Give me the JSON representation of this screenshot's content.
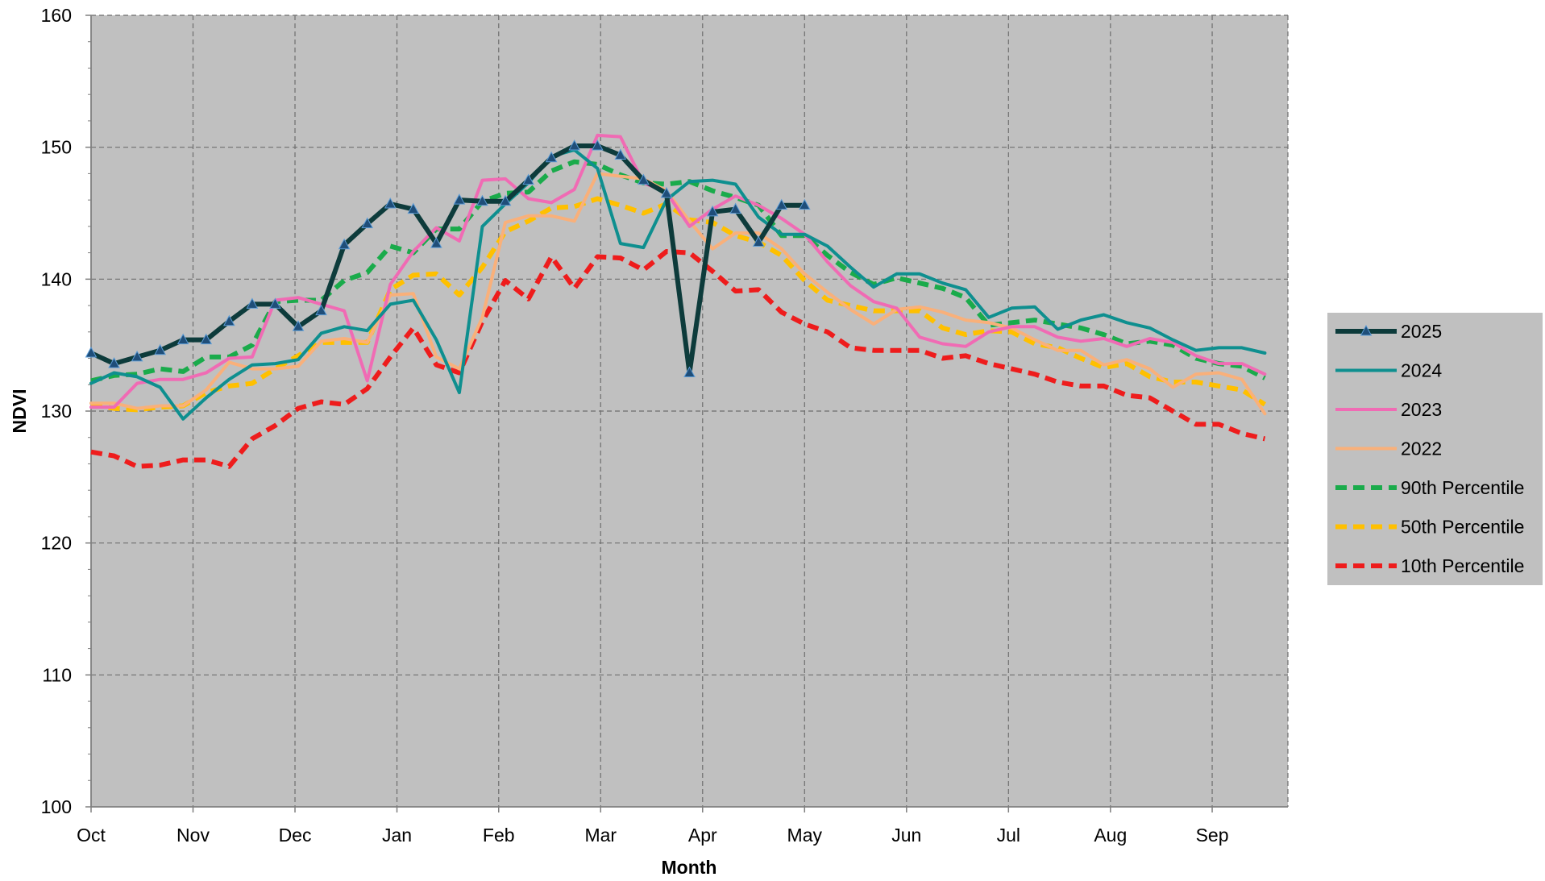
{
  "chart_data": {
    "type": "line",
    "title": "",
    "xlabel": "Month",
    "ylabel": "NDVI",
    "ylim": [
      100,
      160
    ],
    "yticks": [
      100,
      110,
      120,
      130,
      140,
      150,
      160
    ],
    "x_range": [
      0,
      52
    ],
    "month_ticks": [
      {
        "label": "Oct",
        "week": 0
      },
      {
        "label": "Nov",
        "week": 4.43
      },
      {
        "label": "Dec",
        "week": 8.86
      },
      {
        "label": "Jan",
        "week": 13.29
      },
      {
        "label": "Feb",
        "week": 17.71
      },
      {
        "label": "Mar",
        "week": 22.14
      },
      {
        "label": "Apr",
        "week": 26.57
      },
      {
        "label": "May",
        "week": 31.0
      },
      {
        "label": "Jun",
        "week": 35.43
      },
      {
        "label": "Jul",
        "week": 39.86
      },
      {
        "label": "Aug",
        "week": 44.29
      },
      {
        "label": "Sep",
        "week": 48.71
      }
    ],
    "grid": true,
    "legend_position": "right",
    "plot_background": "#c0c0c0",
    "series": [
      {
        "name": "2025",
        "color": "#0d3b3b",
        "dash": false,
        "marker": "triangle",
        "width": 6,
        "values": [
          134.4,
          133.6,
          134.1,
          134.6,
          135.4,
          135.4,
          136.8,
          138.1,
          138.1,
          136.4,
          137.6,
          142.6,
          144.2,
          145.7,
          145.3,
          142.7,
          146.0,
          145.9,
          145.9,
          147.5,
          149.2,
          150.1,
          150.1,
          149.4,
          147.5,
          146.5,
          132.9,
          145.1,
          145.3,
          142.8,
          145.6,
          145.6
        ]
      },
      {
        "name": "2024",
        "color": "#0e8f8f",
        "dash": false,
        "marker": "none",
        "width": 4,
        "values": [
          132.1,
          132.9,
          132.6,
          131.8,
          129.4,
          131.0,
          132.4,
          133.5,
          133.6,
          133.9,
          135.9,
          136.4,
          136.1,
          138.1,
          138.4,
          135.4,
          131.4,
          144.0,
          145.7,
          147.3,
          149.3,
          149.8,
          148.4,
          142.7,
          142.4,
          146.0,
          147.4,
          147.5,
          147.2,
          144.7,
          143.4,
          143.4,
          142.5,
          140.9,
          139.4,
          140.4,
          140.4,
          139.7,
          139.2,
          137.1,
          137.8,
          137.9,
          136.2,
          136.9,
          137.3,
          136.7,
          136.3,
          135.4,
          134.6,
          134.8,
          134.8,
          134.4
        ]
      },
      {
        "name": "2023",
        "color": "#f06bb4",
        "dash": false,
        "marker": "none",
        "width": 4,
        "values": [
          130.3,
          130.3,
          132.1,
          132.4,
          132.4,
          132.9,
          134.0,
          134.1,
          138.4,
          138.6,
          138.1,
          137.6,
          132.3,
          139.6,
          142.1,
          143.9,
          142.9,
          147.5,
          147.6,
          146.1,
          145.8,
          146.8,
          150.9,
          150.8,
          147.3,
          146.6,
          144.0,
          145.3,
          146.3,
          145.6,
          144.6,
          143.4,
          141.3,
          139.5,
          138.3,
          137.8,
          135.6,
          135.1,
          134.9,
          136.0,
          136.4,
          136.4,
          135.6,
          135.3,
          135.5,
          134.9,
          135.5,
          135.2,
          134.2,
          133.6,
          133.6,
          132.8
        ]
      },
      {
        "name": "2022",
        "color": "#f9b07a",
        "dash": false,
        "marker": "none",
        "width": 4,
        "values": [
          130.6,
          130.6,
          130.2,
          130.4,
          130.4,
          131.6,
          133.7,
          133.2,
          133.2,
          133.4,
          135.3,
          135.5,
          135.2,
          138.8,
          138.9,
          134.1,
          133.2,
          137.1,
          144.3,
          144.8,
          144.8,
          144.4,
          148.0,
          147.8,
          147.6,
          146.7,
          144.4,
          142.3,
          143.5,
          143.5,
          142.3,
          140.4,
          139.0,
          137.7,
          136.6,
          137.7,
          137.9,
          137.5,
          136.9,
          136.7,
          136.3,
          135.4,
          134.6,
          134.6,
          133.5,
          133.9,
          133.2,
          131.8,
          132.8,
          132.9,
          132.4,
          129.8
        ]
      },
      {
        "name": "90th Percentile",
        "color": "#1aab4b",
        "dash": true,
        "marker": "none",
        "width": 6,
        "values": [
          132.3,
          132.7,
          132.8,
          133.2,
          133.0,
          134.1,
          134.1,
          135.0,
          138.3,
          138.4,
          138.4,
          139.9,
          140.5,
          142.5,
          142.0,
          143.8,
          143.8,
          145.9,
          146.5,
          146.6,
          148.2,
          148.9,
          148.7,
          147.9,
          147.3,
          147.2,
          147.4,
          146.7,
          146.2,
          145.6,
          143.3,
          143.3,
          141.8,
          140.5,
          139.6,
          140.1,
          139.7,
          139.3,
          138.6,
          136.5,
          136.7,
          136.9,
          136.6,
          136.3,
          135.8,
          135.1,
          135.3,
          135.0,
          134.0,
          133.6,
          133.4,
          132.5
        ]
      },
      {
        "name": "50th Percentile",
        "color": "#ffc000",
        "dash": true,
        "marker": "none",
        "width": 6,
        "values": [
          130.5,
          130.2,
          130.1,
          130.3,
          130.4,
          131.4,
          131.9,
          132.1,
          133.2,
          134.2,
          135.2,
          135.2,
          135.2,
          139.2,
          140.3,
          140.4,
          138.8,
          140.9,
          143.6,
          144.4,
          145.4,
          145.5,
          146.1,
          145.6,
          145.0,
          145.7,
          144.5,
          144.3,
          143.3,
          142.8,
          141.8,
          139.9,
          138.4,
          138.0,
          137.6,
          137.6,
          137.6,
          136.3,
          135.8,
          136.1,
          136.0,
          135.1,
          134.8,
          134.0,
          133.3,
          133.6,
          132.6,
          132.2,
          132.2,
          131.9,
          131.6,
          130.5
        ]
      },
      {
        "name": "10th Percentile",
        "color": "#ee1c1c",
        "dash": true,
        "marker": "none",
        "width": 6,
        "values": [
          126.9,
          126.6,
          125.8,
          125.9,
          126.3,
          126.3,
          125.8,
          127.9,
          128.9,
          130.2,
          130.7,
          130.5,
          131.7,
          134.1,
          136.3,
          133.5,
          132.9,
          136.8,
          139.9,
          138.5,
          141.7,
          139.3,
          141.7,
          141.6,
          140.7,
          142.1,
          142.0,
          140.6,
          139.1,
          139.2,
          137.5,
          136.6,
          136.0,
          134.8,
          134.6,
          134.6,
          134.6,
          134.0,
          134.2,
          133.6,
          133.2,
          132.8,
          132.2,
          131.9,
          131.9,
          131.2,
          131.0,
          130.0,
          129.0,
          129.0,
          128.3,
          127.9
        ]
      }
    ]
  }
}
